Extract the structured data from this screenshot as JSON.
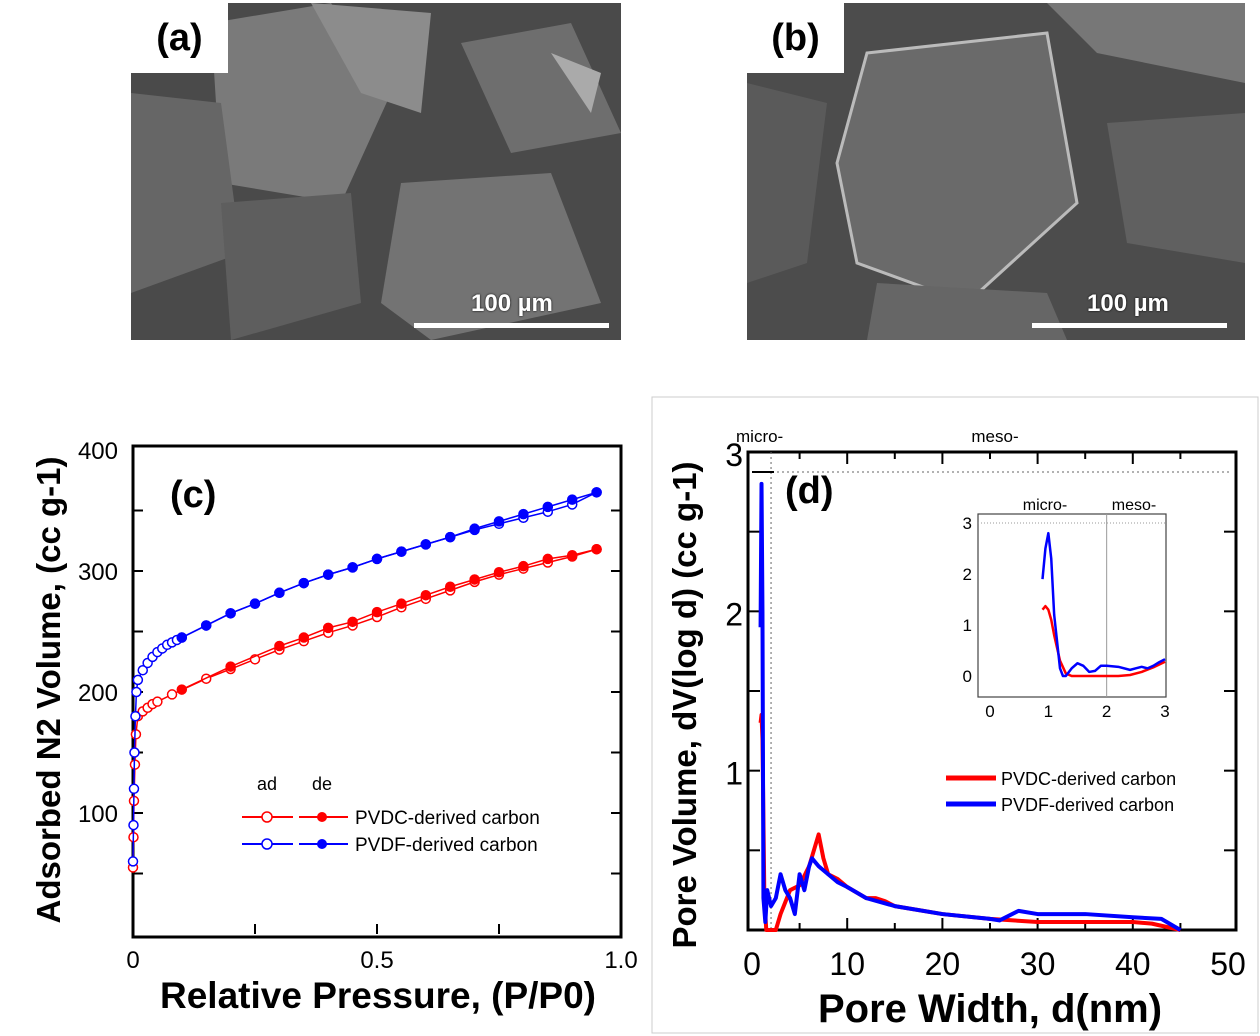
{
  "sem_a": {
    "label": "(a)",
    "scale_bar": "100 µm"
  },
  "sem_b": {
    "label": "(b)",
    "scale_bar": "100 µm"
  },
  "chart_data": [
    {
      "type": "scatter",
      "panel": "(c)",
      "xlabel": "Relative Pressure, (P/P0)",
      "ylabel": "Adsorbed N2 Volume, (cc g-1)",
      "xlim": [
        0,
        1.0
      ],
      "ylim": [
        0,
        400
      ],
      "xticks": [
        "0",
        "0.5",
        "1.0"
      ],
      "yticks": [
        "100",
        "200",
        "300",
        "400"
      ],
      "legend_header": [
        "ad",
        "de"
      ],
      "legend_position": "center-right",
      "series": [
        {
          "name": "PVDC-derived carbon",
          "branch": "ad",
          "color": "#ff0000",
          "x": [
            0,
            0.001,
            0.002,
            0.004,
            0.006,
            0.01,
            0.02,
            0.03,
            0.04,
            0.05,
            0.08,
            0.15,
            0.2,
            0.25,
            0.3,
            0.35,
            0.4,
            0.45,
            0.5,
            0.55,
            0.6,
            0.65,
            0.7,
            0.75,
            0.8,
            0.85,
            0.9,
            0.95
          ],
          "y": [
            55,
            80,
            110,
            140,
            165,
            180,
            184,
            187,
            190,
            192,
            198,
            211,
            219,
            227,
            235,
            242,
            249,
            255,
            262,
            270,
            277,
            284,
            291,
            297,
            302,
            307,
            312,
            318
          ]
        },
        {
          "name": "PVDC-derived carbon",
          "branch": "de",
          "color": "#ff0000",
          "x": [
            0.1,
            0.2,
            0.3,
            0.35,
            0.4,
            0.45,
            0.5,
            0.55,
            0.6,
            0.65,
            0.7,
            0.75,
            0.8,
            0.85,
            0.9,
            0.95
          ],
          "y": [
            202,
            221,
            238,
            245,
            253,
            258,
            266,
            273,
            280,
            287,
            293,
            299,
            304,
            310,
            313,
            318
          ]
        },
        {
          "name": "PVDF-derived carbon",
          "branch": "ad",
          "color": "#0000ff",
          "x": [
            0,
            0.001,
            0.002,
            0.003,
            0.005,
            0.007,
            0.01,
            0.02,
            0.03,
            0.04,
            0.05,
            0.06,
            0.07,
            0.08,
            0.09,
            0.1,
            0.15,
            0.2,
            0.25,
            0.3,
            0.35,
            0.4,
            0.45,
            0.5,
            0.55,
            0.6,
            0.65,
            0.7,
            0.75,
            0.8,
            0.85,
            0.9,
            0.95
          ],
          "y": [
            60,
            90,
            120,
            150,
            180,
            200,
            210,
            218,
            224,
            229,
            233,
            236,
            239,
            241,
            243,
            245,
            255,
            265,
            273,
            282,
            290,
            297,
            303,
            310,
            316,
            322,
            328,
            334,
            339,
            344,
            349,
            355,
            365
          ]
        },
        {
          "name": "PVDF-derived carbon",
          "branch": "de",
          "color": "#0000ff",
          "x": [
            0.1,
            0.15,
            0.2,
            0.25,
            0.3,
            0.35,
            0.4,
            0.45,
            0.5,
            0.55,
            0.6,
            0.65,
            0.7,
            0.75,
            0.8,
            0.85,
            0.9,
            0.95
          ],
          "y": [
            245,
            255,
            265,
            273,
            282,
            290,
            297,
            303,
            310,
            316,
            322,
            328,
            335,
            341,
            347,
            353,
            359,
            365
          ]
        }
      ]
    },
    {
      "type": "line",
      "panel": "(d)",
      "xlabel": "Pore Width, d(nm)",
      "ylabel": "Pore Volume, dV(log d) (cc g-1)",
      "xlim": [
        0,
        50
      ],
      "ylim": [
        0,
        3
      ],
      "xticks": [
        "0",
        "10",
        "20",
        "30",
        "40",
        "50"
      ],
      "yticks": [
        "1",
        "2",
        "3"
      ],
      "region_labels": [
        "micro-",
        "meso-"
      ],
      "legend_position": "center-right",
      "series": [
        {
          "name": "PVDC-derived carbon",
          "color": "#ff0000",
          "x": [
            0.9,
            1.0,
            1.1,
            1.3,
            1.5,
            2,
            2.5,
            3,
            4,
            5,
            6,
            7,
            7.5,
            8,
            9,
            10,
            12,
            13,
            14,
            15,
            18,
            20,
            25,
            30,
            35,
            40,
            42,
            45
          ],
          "y": [
            1.3,
            1.35,
            1.2,
            0.2,
            0,
            0,
            0,
            0.1,
            0.25,
            0.28,
            0.4,
            0.6,
            0.45,
            0.35,
            0.32,
            0.27,
            0.2,
            0.2,
            0.18,
            0.15,
            0.12,
            0.1,
            0.07,
            0.05,
            0.05,
            0.05,
            0.04,
            0
          ]
        },
        {
          "name": "PVDF-derived carbon",
          "color": "#0000ff",
          "x": [
            0.9,
            1.0,
            1.1,
            1.2,
            1.4,
            1.6,
            2,
            2.5,
            3,
            3.5,
            4,
            4.5,
            5,
            5.5,
            6,
            6.3,
            7,
            8,
            9,
            10,
            12,
            15,
            20,
            25,
            26,
            28,
            30,
            35,
            40,
            43,
            45
          ],
          "y": [
            1.9,
            2.8,
            2.0,
            0.2,
            0.05,
            0.25,
            0.15,
            0.2,
            0.35,
            0.25,
            0.2,
            0.1,
            0.35,
            0.25,
            0.4,
            0.45,
            0.4,
            0.35,
            0.3,
            0.27,
            0.2,
            0.15,
            0.1,
            0.07,
            0.06,
            0.12,
            0.1,
            0.1,
            0.08,
            0.07,
            0
          ]
        }
      ],
      "inset": {
        "xlim": [
          0,
          3
        ],
        "ylim": [
          -0.1,
          3.1
        ],
        "xticks": [
          "0",
          "1",
          "2",
          "3"
        ],
        "yticks": [
          "0",
          "1",
          "2",
          "3"
        ],
        "region_labels": [
          "micro-",
          "meso-"
        ],
        "series": [
          {
            "name": "PVDC-derived carbon",
            "color": "#ff0000",
            "x": [
              0.9,
              0.95,
              1.0,
              1.05,
              1.1,
              1.2,
              1.3,
              1.4,
              1.6,
              1.8,
              2.0,
              2.2,
              2.4,
              2.6,
              2.8,
              3.0
            ],
            "y": [
              1.3,
              1.37,
              1.3,
              1.1,
              0.8,
              0.3,
              0.05,
              0,
              0,
              0,
              0,
              0,
              0.02,
              0.08,
              0.17,
              0.28
            ]
          },
          {
            "name": "PVDF-derived carbon",
            "color": "#0000ff",
            "x": [
              0.9,
              0.95,
              1.0,
              1.05,
              1.1,
              1.2,
              1.25,
              1.3,
              1.4,
              1.5,
              1.6,
              1.7,
              1.8,
              1.9,
              2.0,
              2.2,
              2.4,
              2.5,
              2.6,
              2.7,
              2.8,
              2.9,
              3.0
            ],
            "y": [
              1.9,
              2.5,
              2.8,
              2.3,
              1.2,
              0.15,
              0,
              0,
              0.15,
              0.25,
              0.2,
              0.08,
              0.1,
              0.2,
              0.2,
              0.18,
              0.12,
              0.15,
              0.18,
              0.15,
              0.2,
              0.27,
              0.33
            ]
          }
        ]
      }
    }
  ]
}
